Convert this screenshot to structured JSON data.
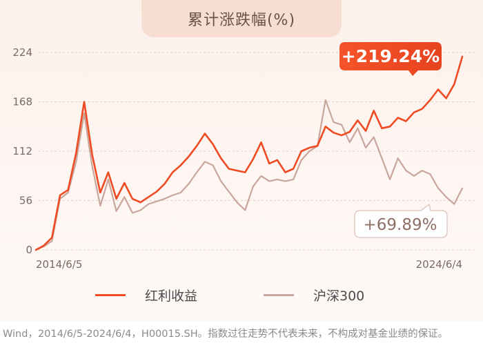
{
  "chart_title": "累计涨跌幅(%)",
  "footnote": "Wind，2014/6/5-2024/6/4，H00015.SH。指数过往走势不代表未来，不构成对基金业绩的保证。",
  "chart_data": {
    "type": "line",
    "title": "累计涨跌幅(%)",
    "ylim": [
      0,
      224
    ],
    "yticks": [
      "0",
      "56",
      "112",
      "168",
      "224"
    ],
    "x_start_label": "2014/6/5",
    "x_end_label": "2024/6/4",
    "grid": true,
    "legend_position": "bottom-center",
    "annotations": [
      "+219.24%",
      "+69.89%"
    ],
    "x": [
      "2014-06",
      "2014-08",
      "2014-10",
      "2014-12",
      "2015-02",
      "2015-04",
      "2015-05",
      "2015-06",
      "2015-07",
      "2015-08",
      "2015-10",
      "2015-12",
      "2016-01",
      "2016-02",
      "2016-04",
      "2016-06",
      "2016-09",
      "2016-12",
      "2017-03",
      "2017-06",
      "2017-09",
      "2017-12",
      "2018-01",
      "2018-03",
      "2018-06",
      "2018-09",
      "2018-12",
      "2019-03",
      "2019-05",
      "2019-08",
      "2019-11",
      "2020-02",
      "2020-04",
      "2020-07",
      "2020-09",
      "2020-12",
      "2021-02",
      "2021-04",
      "2021-07",
      "2021-10",
      "2021-12",
      "2022-03",
      "2022-06",
      "2022-09",
      "2022-11",
      "2023-02",
      "2023-05",
      "2023-07",
      "2023-09",
      "2023-11",
      "2024-01",
      "2024-03",
      "2024-04",
      "2024-06"
    ],
    "series": [
      {
        "name": "红利收益",
        "color": "#f04a23",
        "values": [
          0,
          5,
          14,
          62,
          68,
          110,
          168,
          108,
          65,
          88,
          58,
          76,
          58,
          54,
          60,
          66,
          75,
          88,
          96,
          106,
          118,
          132,
          120,
          104,
          92,
          90,
          88,
          103,
          122,
          98,
          102,
          88,
          92,
          112,
          116,
          118,
          140,
          133,
          130,
          134,
          147,
          135,
          158,
          138,
          140,
          150,
          146,
          156,
          160,
          170,
          182,
          172,
          188,
          219.24
        ]
      },
      {
        "name": "沪深300",
        "color": "#c8a69c",
        "values": [
          0,
          4,
          10,
          58,
          65,
          100,
          155,
          95,
          50,
          80,
          44,
          60,
          42,
          45,
          52,
          55,
          58,
          62,
          65,
          75,
          88,
          100,
          96,
          78,
          66,
          54,
          45,
          72,
          84,
          78,
          80,
          78,
          80,
          102,
          112,
          118,
          170,
          145,
          142,
          122,
          138,
          116,
          128,
          104,
          80,
          104,
          90,
          84,
          90,
          86,
          70,
          60,
          52,
          69.89
        ]
      }
    ]
  }
}
